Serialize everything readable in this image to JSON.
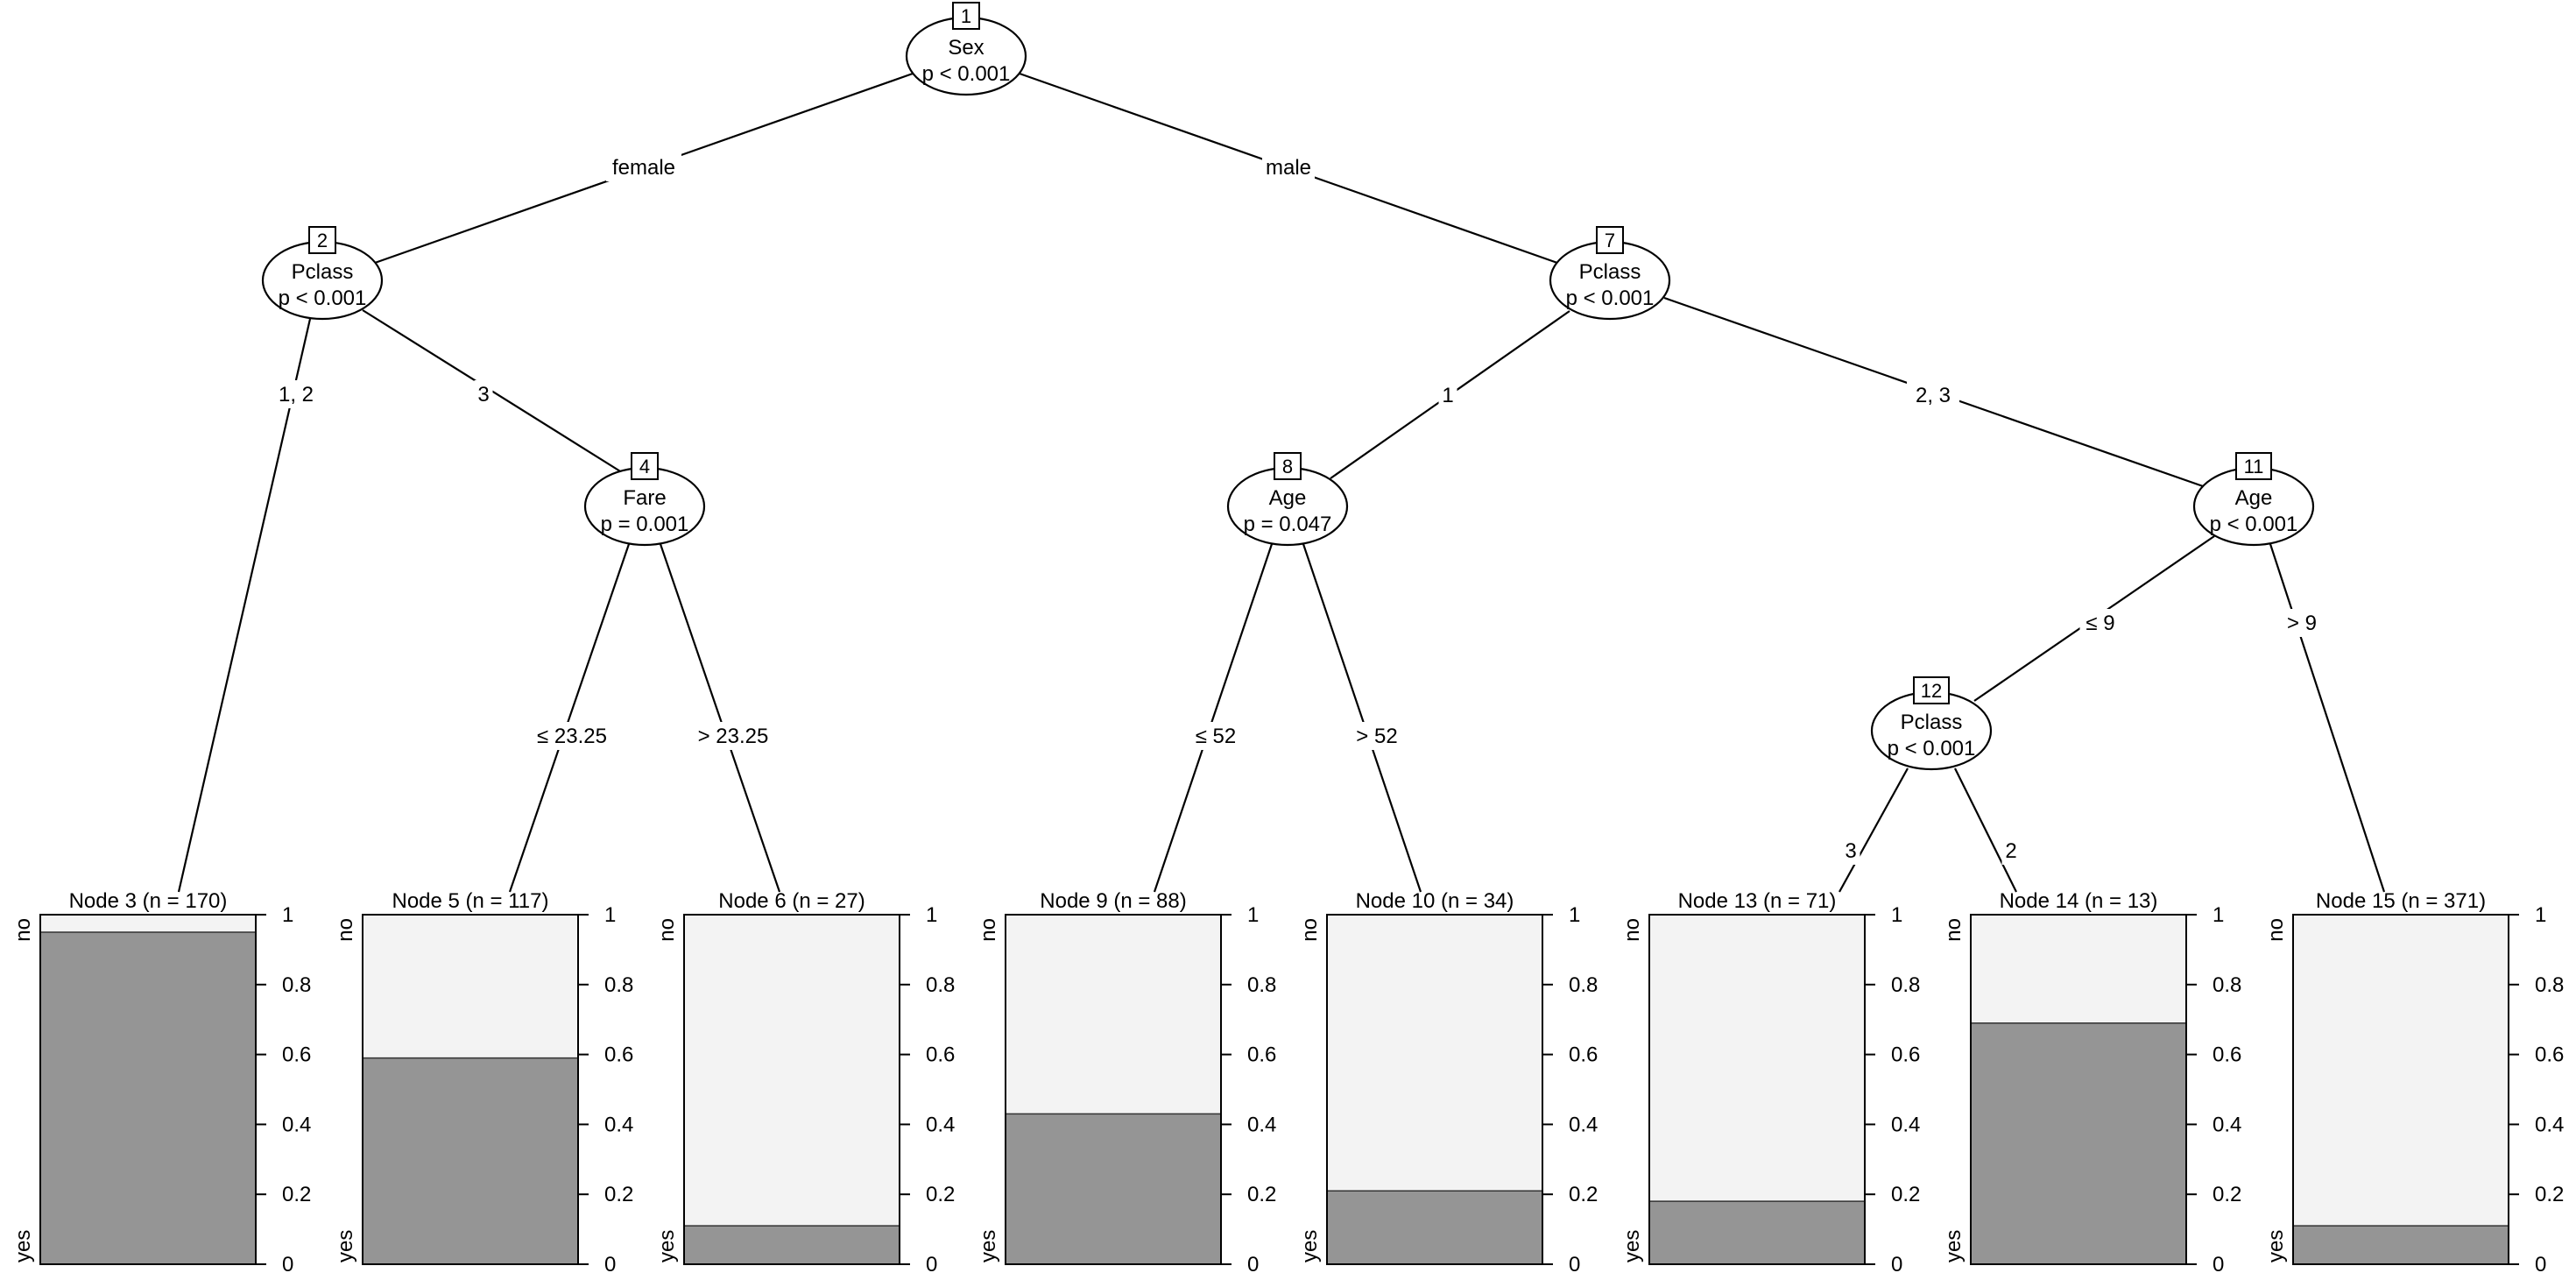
{
  "inner_nodes": [
    {
      "id": "1",
      "variable": "Sex",
      "p": "p < 0.001"
    },
    {
      "id": "2",
      "variable": "Pclass",
      "p": "p < 0.001"
    },
    {
      "id": "4",
      "variable": "Fare",
      "p": "p = 0.001"
    },
    {
      "id": "7",
      "variable": "Pclass",
      "p": "p < 0.001"
    },
    {
      "id": "8",
      "variable": "Age",
      "p": "p = 0.047"
    },
    {
      "id": "11",
      "variable": "Age",
      "p": "p < 0.001"
    },
    {
      "id": "12",
      "variable": "Pclass",
      "p": "p < 0.001"
    }
  ],
  "edges": [
    {
      "from": "1",
      "to": "2",
      "label": "female"
    },
    {
      "from": "1",
      "to": "7",
      "label": "male"
    },
    {
      "from": "2",
      "to": "3",
      "label": "1, 2"
    },
    {
      "from": "2",
      "to": "4",
      "label": "3"
    },
    {
      "from": "4",
      "to": "5",
      "label": "≤ 23.25"
    },
    {
      "from": "4",
      "to": "6",
      "label": "> 23.25"
    },
    {
      "from": "7",
      "to": "8",
      "label": "1"
    },
    {
      "from": "7",
      "to": "11",
      "label": "2, 3"
    },
    {
      "from": "8",
      "to": "9",
      "label": "≤ 52"
    },
    {
      "from": "8",
      "to": "10",
      "label": "> 52"
    },
    {
      "from": "11",
      "to": "12",
      "label": "≤ 9"
    },
    {
      "from": "11",
      "to": "15",
      "label": "> 9"
    },
    {
      "from": "12",
      "to": "13",
      "label": "3"
    },
    {
      "from": "12",
      "to": "14",
      "label": "2"
    }
  ],
  "terminal_nodes": [
    {
      "id": "3",
      "title": "Node 3 (n = 170)",
      "yes": 0.95
    },
    {
      "id": "5",
      "title": "Node 5 (n = 117)",
      "yes": 0.59
    },
    {
      "id": "6",
      "title": "Node 6 (n = 27)",
      "yes": 0.11
    },
    {
      "id": "9",
      "title": "Node 9 (n = 88)",
      "yes": 0.43
    },
    {
      "id": "10",
      "title": "Node 10 (n = 34)",
      "yes": 0.21
    },
    {
      "id": "13",
      "title": "Node 13 (n = 71)",
      "yes": 0.18
    },
    {
      "id": "14",
      "title": "Node 14 (n = 13)",
      "yes": 0.69
    },
    {
      "id": "15",
      "title": "Node 15 (n = 371)",
      "yes": 0.11
    }
  ],
  "bar_axis": {
    "ticks": [
      "0",
      "0.2",
      "0.4",
      "0.6",
      "0.8",
      "1"
    ],
    "top_label": "no",
    "bottom_label": "yes"
  },
  "colors": {
    "yes_fill": "#959595",
    "no_fill": "#f3f3f3",
    "stroke": "#000000"
  }
}
